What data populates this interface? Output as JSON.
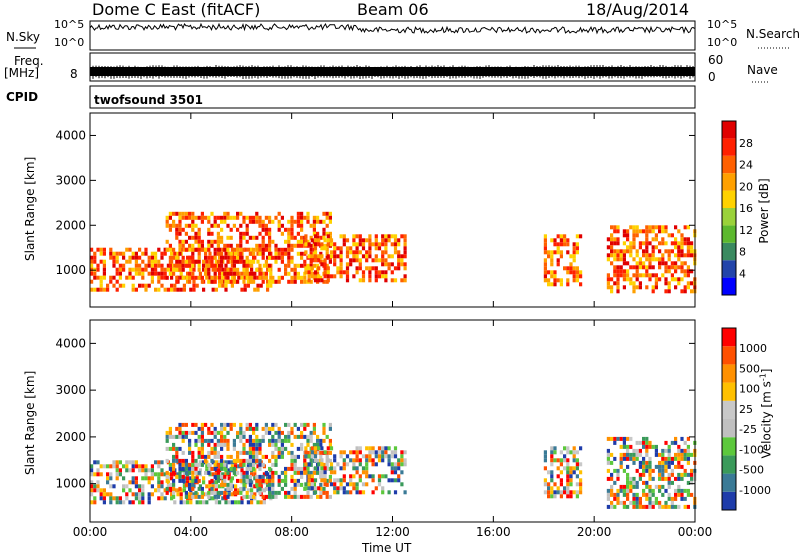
{
  "header": {
    "station": "Dome C East (fitACF)",
    "beam": "Beam 06",
    "date": "18/Aug/2014"
  },
  "strips": {
    "nsky_label": "N.Sky",
    "nsky_top": "10^5",
    "nsky_bottom": "10^0",
    "nsearch_top": "10^5",
    "nsearch_bottom": "10^0",
    "nsearch_label": "N.Search",
    "freq_label_1": "Freq.",
    "freq_label_2": "[MHz]",
    "freq_tick": "8",
    "nave_top": "60",
    "nave_bottom": "0",
    "nave_label": "Nave",
    "cpid_label": "CPID",
    "cpid_value": "twofsound 3501"
  },
  "chart_data": [
    {
      "type": "heatmap",
      "name": "power",
      "ylabel": "Slant Range [km]",
      "ylim": [
        180,
        4500
      ],
      "yticks": [
        "4000",
        "3000",
        "2000",
        "1000"
      ],
      "xlim": [
        0,
        24
      ],
      "colorbar": {
        "label": "Power [dB]",
        "ticks": [
          "28",
          "24",
          "20",
          "16",
          "12",
          "8",
          "4"
        ],
        "colors": [
          "#0000ff",
          "#2244aa",
          "#3a8a60",
          "#5cb82e",
          "#9ad23a",
          "#ffd200",
          "#ffa000",
          "#ff6000",
          "#ff2000",
          "#e00000"
        ]
      }
    },
    {
      "type": "heatmap",
      "name": "velocity",
      "ylabel": "Slant Range [km]",
      "ylim": [
        180,
        4500
      ],
      "yticks": [
        "4000",
        "3000",
        "2000",
        "1000"
      ],
      "xlim": [
        0,
        24
      ],
      "xticks": [
        "00:00",
        "04:00",
        "08:00",
        "12:00",
        "16:00",
        "20:00",
        "00:00"
      ],
      "xlabel": "Time UT",
      "colorbar": {
        "label": "Velocity [m s",
        "label_sup": "-1",
        "label_end": "]",
        "ticks": [
          "1000",
          "500",
          "100",
          "25",
          "-25",
          "-100",
          "-500",
          "-1000"
        ],
        "colors": [
          "#1e3caa",
          "#3a7a96",
          "#3a9a5a",
          "#5cc83c",
          "#c0c0c0",
          "#c8c8c8",
          "#ffc000",
          "#ff9000",
          "#ff5000",
          "#ff0000"
        ]
      }
    }
  ]
}
